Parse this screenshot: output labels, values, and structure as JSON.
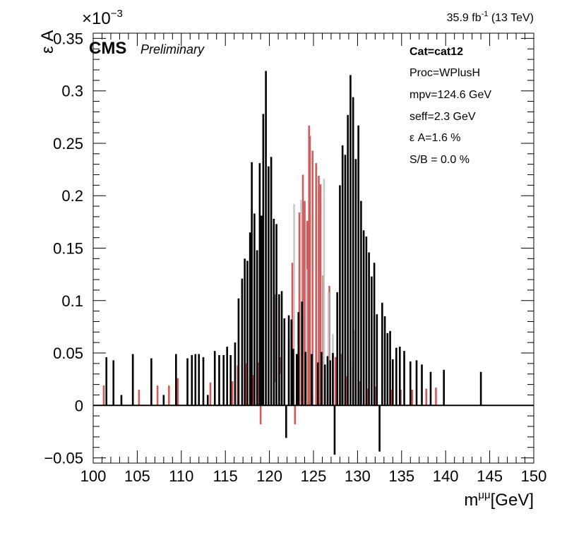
{
  "header": {
    "experiment": "CMS",
    "status": "Preliminary",
    "lumi_value": "35.9 fb",
    "lumi_exponent": "-1",
    "lumi_energy": " (13 TeV)"
  },
  "info": {
    "category": "Cat=cat12",
    "process": "Proc=WPlusH",
    "mpv": "mpv=124.6 GeV",
    "seff": "seff=2.3 GeV",
    "eff_acc": "ε A=1.6 %",
    "s_over_b": "S/B = 0.0 %"
  },
  "chart_data": {
    "type": "bar",
    "title": "",
    "xlabel_main": "m",
    "xlabel_sup": "μμ",
    "xlabel_unit": "[GeV]",
    "ylabel": "ε A",
    "y_multiplier_base": "×10",
    "y_multiplier_exp": "−3",
    "xlim": [
      100,
      150
    ],
    "ylim": [
      -0.055,
      0.355
    ],
    "grid": false,
    "x_ticks": [
      100,
      105,
      110,
      115,
      120,
      125,
      130,
      135,
      140,
      145,
      150
    ],
    "x_tick_labels": [
      "100",
      "105",
      "110",
      "115",
      "120",
      "125",
      "130",
      "135",
      "140",
      "145",
      "150"
    ],
    "y_ticks": [
      -0.05,
      0,
      0.05,
      0.1,
      0.15,
      0.2,
      0.25,
      0.3,
      0.35
    ],
    "y_tick_labels": [
      "−0.05",
      "0",
      "0.05",
      "0.1",
      "0.15",
      "0.2",
      "0.25",
      "0.3",
      "0.35"
    ],
    "colors": {
      "black_series": "#000000",
      "red_series": "#cd5c5c",
      "grey_series": "#c8c8c8"
    },
    "series": [
      {
        "color_key": "black_series",
        "x": [
          101.5,
          102.3,
          103.2,
          104.5,
          106.6,
          108.0,
          109.4,
          110.7,
          111.2,
          111.6,
          112.0,
          112.5,
          113.0,
          113.8,
          114.3,
          114.8,
          115.2,
          115.6,
          116.1,
          116.5,
          116.9,
          117.2,
          117.5,
          117.8,
          118.0,
          118.3,
          118.6,
          118.9,
          119.1,
          119.3,
          119.6,
          119.9,
          120.2,
          120.5,
          120.8,
          121.1,
          121.4,
          121.7,
          121.9,
          122.2,
          122.5,
          122.7,
          123.1,
          123.3,
          123.7,
          124.1,
          124.8,
          125.5,
          125.9,
          126.3,
          126.6,
          126.9,
          127.2,
          127.4,
          127.7,
          128.0,
          128.3,
          128.6,
          128.9,
          129.2,
          129.5,
          129.8,
          130.1,
          130.4,
          130.7,
          131.0,
          131.3,
          131.6,
          131.9,
          132.2,
          132.5,
          132.8,
          133.1,
          133.4,
          133.7,
          134.0,
          134.4,
          134.8,
          135.3,
          136.0,
          136.7,
          137.3,
          138.3,
          139.8,
          144.0
        ],
        "values": [
          0.046,
          0.043,
          0.01,
          0.049,
          0.045,
          0.01,
          0.049,
          0.045,
          0.048,
          0.049,
          0.049,
          0.046,
          0.01,
          0.052,
          0.048,
          0.048,
          0.056,
          0.048,
          0.06,
          0.102,
          0.121,
          0.14,
          0.138,
          0.165,
          0.232,
          0.183,
          0.148,
          0.231,
          0.181,
          0.278,
          0.319,
          0.228,
          0.237,
          0.178,
          0.173,
          0.106,
          0.109,
          0.083,
          -0.031,
          0.086,
          0.082,
          0.054,
          0.049,
          0.089,
          0.099,
          0.051,
          0.049,
          0.041,
          0.051,
          0.039,
          0.047,
          0.043,
          0.05,
          -0.047,
          0.108,
          0.21,
          0.248,
          0.239,
          0.277,
          0.315,
          0.294,
          0.235,
          0.267,
          0.195,
          0.167,
          0.161,
          0.146,
          0.123,
          0.136,
          0.087,
          -0.044,
          0.098,
          0.085,
          0.069,
          0.071,
          0.044,
          0.055,
          0.056,
          0.052,
          0.042,
          0.043,
          0.039,
          0.032,
          0.034,
          0.032
        ]
      },
      {
        "color_key": "red_series",
        "x": [
          101.2,
          105.2,
          107.3,
          108.6,
          109.6,
          113.3,
          115.8,
          116.4,
          117.3,
          118.2,
          118.8,
          119.0,
          120.6,
          121.3,
          122.2,
          122.6,
          122.9,
          123.4,
          123.8,
          124.0,
          124.3,
          124.5,
          124.6,
          124.9,
          125.3,
          125.6,
          125.8,
          126.1,
          126.8,
          127.5,
          128.2,
          128.8,
          129.5,
          130.3,
          131.2,
          132.1,
          133.8,
          134.9,
          136.2,
          137.8,
          138.9
        ],
        "values": [
          0.019,
          0.015,
          0.019,
          0.019,
          0.026,
          0.022,
          0.023,
          0.038,
          0.04,
          0.029,
          0.041,
          -0.018,
          0.106,
          0.046,
          0.062,
          0.136,
          -0.018,
          0.184,
          0.22,
          0.195,
          0.176,
          0.267,
          0.257,
          0.243,
          0.231,
          0.219,
          0.211,
          0.124,
          0.114,
          0.046,
          0.049,
          0.028,
          0.037,
          0.023,
          0.016,
          0.018,
          0.015,
          0.015,
          0.015,
          0.016,
          0.017
        ]
      },
      {
        "color_key": "grey_series",
        "x": [
          120.7,
          121.3,
          122.8,
          123.6,
          124.2,
          126.2,
          126.7,
          127.2,
          129.6
        ],
        "values": [
          0.022,
          0.03,
          0.192,
          0.196,
          0.13,
          0.216,
          0.108,
          0.068,
          0.072
        ]
      }
    ]
  }
}
